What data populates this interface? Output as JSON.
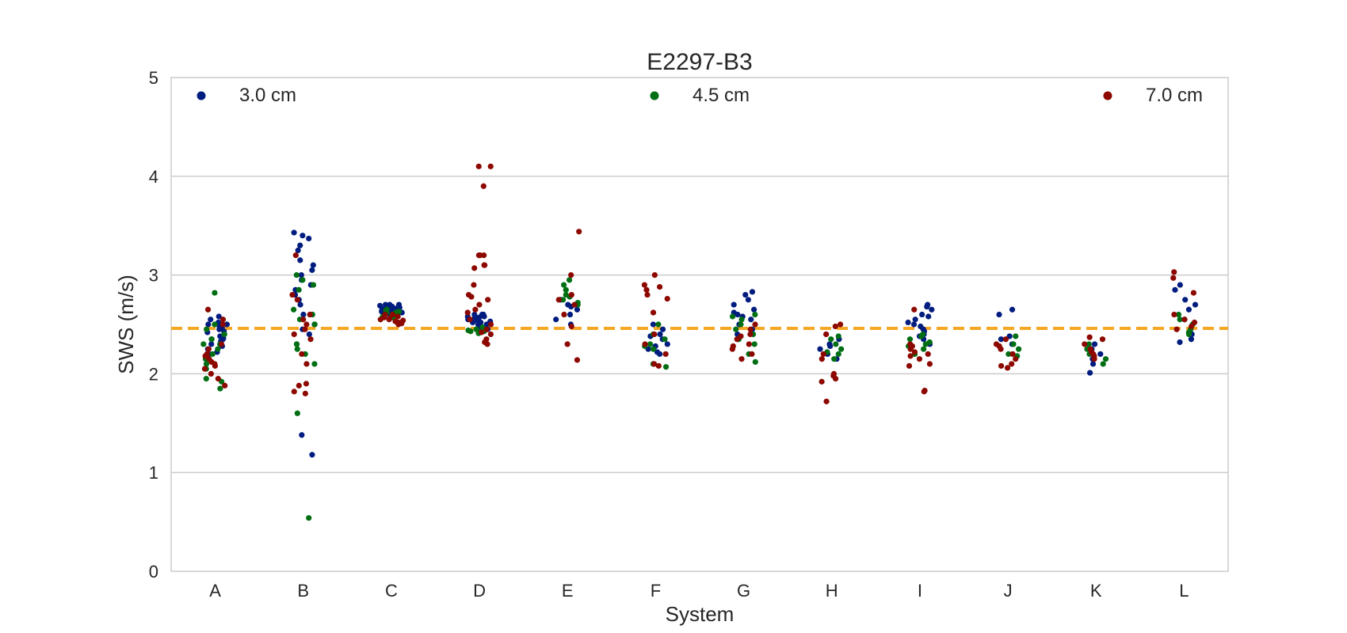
{
  "chart_data": {
    "type": "scatter",
    "title": "E2297-B3",
    "xlabel": "System",
    "ylabel": "SWS (m/s)",
    "ylim": [
      0,
      5
    ],
    "yticks": [
      "0",
      "1",
      "2",
      "3",
      "4",
      "5"
    ],
    "grid": "horizontal",
    "legend_placement": "top",
    "reference_line": {
      "y": 2.46,
      "color": "#f5a623",
      "style": "dashed"
    },
    "categories": [
      "A",
      "B",
      "C",
      "D",
      "E",
      "F",
      "G",
      "H",
      "I",
      "J",
      "K",
      "L"
    ],
    "series": [
      {
        "name": "3.0 cm",
        "color": "#001c7f",
        "points": {
          "A": [
            2.58,
            2.55,
            2.52,
            2.5,
            2.48,
            2.45,
            2.42,
            2.4,
            2.38,
            2.35,
            2.33,
            2.3,
            2.28,
            2.25,
            2.22,
            2.2,
            2.5,
            2.47,
            2.43,
            2.36
          ],
          "B": [
            3.43,
            3.4,
            3.37,
            3.3,
            3.25,
            3.15,
            3.1,
            3.05,
            3.0,
            2.95,
            2.9,
            2.85,
            2.8,
            2.75,
            2.7,
            2.6,
            2.5,
            2.45,
            2.4,
            2.3,
            1.38,
            1.18
          ],
          "C": [
            2.7,
            2.69,
            2.68,
            2.67,
            2.66,
            2.65,
            2.64,
            2.63,
            2.62,
            2.61,
            2.6,
            2.7,
            2.68,
            2.66,
            2.64,
            2.62,
            2.7,
            2.69,
            2.67,
            2.65
          ],
          "D": [
            2.6,
            2.58,
            2.56,
            2.55,
            2.54,
            2.52,
            2.5,
            2.48,
            2.46,
            2.45,
            2.6,
            2.58,
            2.55,
            2.52,
            2.5,
            2.48,
            2.46,
            2.6,
            2.57,
            2.53
          ],
          "E": [
            2.75,
            2.7,
            2.65,
            2.6,
            2.55,
            2.5,
            2.68
          ],
          "F": [
            2.5,
            2.45,
            2.4,
            2.38,
            2.35,
            2.3,
            2.28,
            2.25,
            2.22,
            2.2
          ],
          "G": [
            2.83,
            2.8,
            2.75,
            2.7,
            2.65,
            2.62,
            2.6,
            2.58,
            2.55,
            2.5,
            2.45,
            2.4
          ],
          "H": [
            2.35,
            2.3,
            2.28,
            2.25,
            2.2,
            2.15
          ],
          "I": [
            2.7,
            2.68,
            2.65,
            2.6,
            2.58,
            2.55,
            2.52,
            2.5,
            2.48,
            2.45,
            2.43,
            2.4,
            2.38,
            2.35,
            2.3
          ],
          "J": [
            2.65,
            2.6,
            2.38,
            2.35,
            2.3
          ],
          "K": [
            2.3,
            2.25,
            2.2,
            2.15,
            2.1,
            2.01
          ],
          "L": [
            2.9,
            2.85,
            2.75,
            2.7,
            2.65,
            2.55,
            2.4,
            2.35,
            2.32
          ]
        }
      },
      {
        "name": "4.5 cm",
        "color": "#006e13",
        "points": {
          "A": [
            2.82,
            2.5,
            2.45,
            2.4,
            2.35,
            2.3,
            2.25,
            2.2,
            2.15,
            2.1,
            2.05,
            1.95,
            1.92,
            1.85,
            2.3,
            2.35
          ],
          "B": [
            3.0,
            2.95,
            2.9,
            2.85,
            2.65,
            2.6,
            2.55,
            2.5,
            2.3,
            2.25,
            2.2,
            2.1,
            1.6,
            0.54
          ],
          "C": [
            2.65,
            2.63,
            2.62,
            2.6,
            2.58,
            2.57,
            2.6,
            2.62,
            2.64,
            2.58
          ],
          "D": [
            2.45,
            2.44,
            2.43,
            2.42,
            2.41,
            2.45,
            2.43,
            2.47
          ],
          "E": [
            2.95,
            2.9,
            2.85,
            2.8,
            2.78,
            2.75,
            2.72,
            2.7
          ],
          "F": [
            2.5,
            2.4,
            2.35,
            2.3,
            2.28,
            2.25,
            2.1,
            2.07
          ],
          "G": [
            2.6,
            2.58,
            2.55,
            2.5,
            2.45,
            2.4,
            2.35,
            2.3,
            2.2,
            2.12
          ],
          "H": [
            2.38,
            2.35,
            2.3,
            2.25,
            2.22,
            2.2,
            2.15
          ],
          "I": [
            2.4,
            2.38,
            2.35,
            2.32,
            2.3,
            2.28,
            2.25,
            2.2
          ],
          "J": [
            2.38,
            2.3,
            2.25,
            2.2,
            2.18
          ],
          "K": [
            2.3,
            2.25,
            2.2,
            2.15,
            2.1
          ],
          "L": [
            2.6,
            2.55,
            2.5,
            2.45,
            2.42,
            2.4
          ]
        }
      },
      {
        "name": "7.0 cm",
        "color": "#8c0800",
        "points": {
          "A": [
            2.65,
            2.55,
            2.5,
            2.3,
            2.25,
            2.2,
            2.18,
            2.15,
            2.12,
            2.1,
            2.08,
            2.05,
            2.0,
            1.95,
            1.88
          ],
          "B": [
            3.2,
            2.8,
            2.75,
            2.6,
            2.55,
            2.5,
            2.45,
            2.4,
            2.35,
            2.2,
            2.1,
            1.9,
            1.88,
            1.82,
            1.8
          ],
          "C": [
            2.6,
            2.58,
            2.56,
            2.55,
            2.54,
            2.52,
            2.5,
            2.6,
            2.57,
            2.53,
            2.51,
            2.55
          ],
          "D": [
            4.1,
            4.1,
            3.9,
            3.2,
            3.2,
            3.2,
            3.2,
            3.1,
            3.1,
            3.07,
            2.9,
            2.8,
            2.78,
            2.75,
            2.7,
            2.65,
            2.62,
            2.55,
            2.5,
            2.45,
            2.42,
            2.4,
            2.35,
            2.32,
            2.3
          ],
          "E": [
            3.44,
            3.0,
            2.8,
            2.75,
            2.7,
            2.6,
            2.48,
            2.3,
            2.14
          ],
          "F": [
            3.0,
            2.9,
            2.88,
            2.85,
            2.8,
            2.76,
            2.62,
            2.4,
            2.3,
            2.2,
            2.1,
            2.08
          ],
          "G": [
            2.5,
            2.45,
            2.4,
            2.38,
            2.35,
            2.3,
            2.28,
            2.25,
            2.2,
            2.15
          ],
          "H": [
            2.5,
            2.48,
            2.4,
            2.2,
            2.15,
            2.0,
            1.98,
            1.95,
            1.92,
            1.72
          ],
          "I": [
            2.65,
            2.3,
            2.28,
            2.25,
            2.22,
            2.2,
            2.18,
            2.15,
            2.1,
            2.08,
            1.83,
            1.82
          ],
          "J": [
            2.35,
            2.3,
            2.28,
            2.25,
            2.2,
            2.15,
            2.1,
            2.08,
            2.06
          ],
          "K": [
            2.37,
            2.35,
            2.3,
            2.25,
            2.22,
            2.2,
            2.18,
            2.15
          ],
          "L": [
            3.03,
            2.97,
            2.82,
            2.6,
            2.55,
            2.52,
            2.48,
            2.45
          ]
        }
      }
    ]
  }
}
